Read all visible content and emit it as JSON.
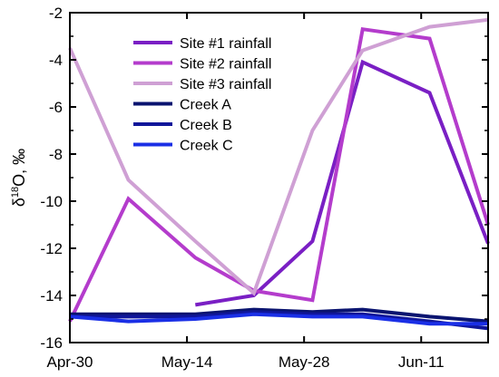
{
  "chart_data": {
    "type": "line",
    "title": "",
    "xlabel": "",
    "ylabel_main": "δ",
    "ylabel_sup": "18",
    "ylabel_rest": "O, ‰",
    "xlim": [
      "2017-04-30",
      "2017-06-19"
    ],
    "ylim": [
      -16,
      -2
    ],
    "x_ticks": [
      {
        "date": "2017-04-30",
        "label": "Apr-30"
      },
      {
        "date": "2017-05-14",
        "label": "May-14"
      },
      {
        "date": "2017-05-28",
        "label": "May-28"
      },
      {
        "date": "2017-06-11",
        "label": "Jun-11"
      }
    ],
    "y_ticks": [
      {
        "value": -2,
        "label": "-2"
      },
      {
        "value": -4,
        "label": "-4"
      },
      {
        "value": -6,
        "label": "-6"
      },
      {
        "value": -8,
        "label": "-8"
      },
      {
        "value": -10,
        "label": "-10"
      },
      {
        "value": -12,
        "label": "-12"
      },
      {
        "value": -14,
        "label": "-14"
      },
      {
        "value": -16,
        "label": "-16"
      }
    ],
    "grid": false,
    "legend_position": "top-left",
    "series": [
      {
        "name": "Site #1 rainfall",
        "color": "#7a1fc4",
        "points": [
          {
            "x": "2017-05-15",
            "y": -14.4
          },
          {
            "x": "2017-05-22",
            "y": -14.0
          },
          {
            "x": "2017-05-29",
            "y": -11.7
          },
          {
            "x": "2017-06-04",
            "y": -4.1
          },
          {
            "x": "2017-06-12",
            "y": -5.4
          },
          {
            "x": "2017-06-19",
            "y": -11.8
          }
        ]
      },
      {
        "name": "Site #2 rainfall",
        "color": "#b43ccc",
        "points": [
          {
            "x": "2017-04-30",
            "y": -15.1
          },
          {
            "x": "2017-05-07",
            "y": -9.9
          },
          {
            "x": "2017-05-15",
            "y": -12.4
          },
          {
            "x": "2017-05-22",
            "y": -13.8
          },
          {
            "x": "2017-05-29",
            "y": -14.2
          },
          {
            "x": "2017-06-04",
            "y": -2.7
          },
          {
            "x": "2017-06-12",
            "y": -3.1
          },
          {
            "x": "2017-06-19",
            "y": -11.0
          }
        ]
      },
      {
        "name": "Site #3 rainfall",
        "color": "#cfa0d4",
        "points": [
          {
            "x": "2017-04-30",
            "y": -3.5
          },
          {
            "x": "2017-05-07",
            "y": -9.1
          },
          {
            "x": "2017-05-15",
            "y": -11.7
          },
          {
            "x": "2017-05-22",
            "y": -13.9
          },
          {
            "x": "2017-05-29",
            "y": -7.0
          },
          {
            "x": "2017-06-04",
            "y": -3.6
          },
          {
            "x": "2017-06-12",
            "y": -2.6
          },
          {
            "x": "2017-06-19",
            "y": -2.3
          }
        ]
      },
      {
        "name": "Creek A",
        "color": "#0a1470",
        "points": [
          {
            "x": "2017-04-30",
            "y": -14.8
          },
          {
            "x": "2017-05-07",
            "y": -14.8
          },
          {
            "x": "2017-05-15",
            "y": -14.8
          },
          {
            "x": "2017-05-22",
            "y": -14.6
          },
          {
            "x": "2017-05-29",
            "y": -14.7
          },
          {
            "x": "2017-06-04",
            "y": -14.6
          },
          {
            "x": "2017-06-12",
            "y": -14.9
          },
          {
            "x": "2017-06-19",
            "y": -15.1
          }
        ]
      },
      {
        "name": "Creek B",
        "color": "#10169a",
        "points": [
          {
            "x": "2017-04-30",
            "y": -14.9
          },
          {
            "x": "2017-05-07",
            "y": -14.9
          },
          {
            "x": "2017-05-15",
            "y": -14.9
          },
          {
            "x": "2017-05-22",
            "y": -14.7
          },
          {
            "x": "2017-05-29",
            "y": -14.8
          },
          {
            "x": "2017-06-04",
            "y": -14.8
          },
          {
            "x": "2017-06-12",
            "y": -15.1
          },
          {
            "x": "2017-06-19",
            "y": -15.4
          }
        ]
      },
      {
        "name": "Creek C",
        "color": "#1a2fe6",
        "points": [
          {
            "x": "2017-04-30",
            "y": -14.9
          },
          {
            "x": "2017-05-07",
            "y": -15.1
          },
          {
            "x": "2017-05-15",
            "y": -15.0
          },
          {
            "x": "2017-05-22",
            "y": -14.8
          },
          {
            "x": "2017-05-29",
            "y": -14.9
          },
          {
            "x": "2017-06-04",
            "y": -14.9
          },
          {
            "x": "2017-06-12",
            "y": -15.2
          },
          {
            "x": "2017-06-19",
            "y": -15.2
          }
        ]
      }
    ]
  }
}
